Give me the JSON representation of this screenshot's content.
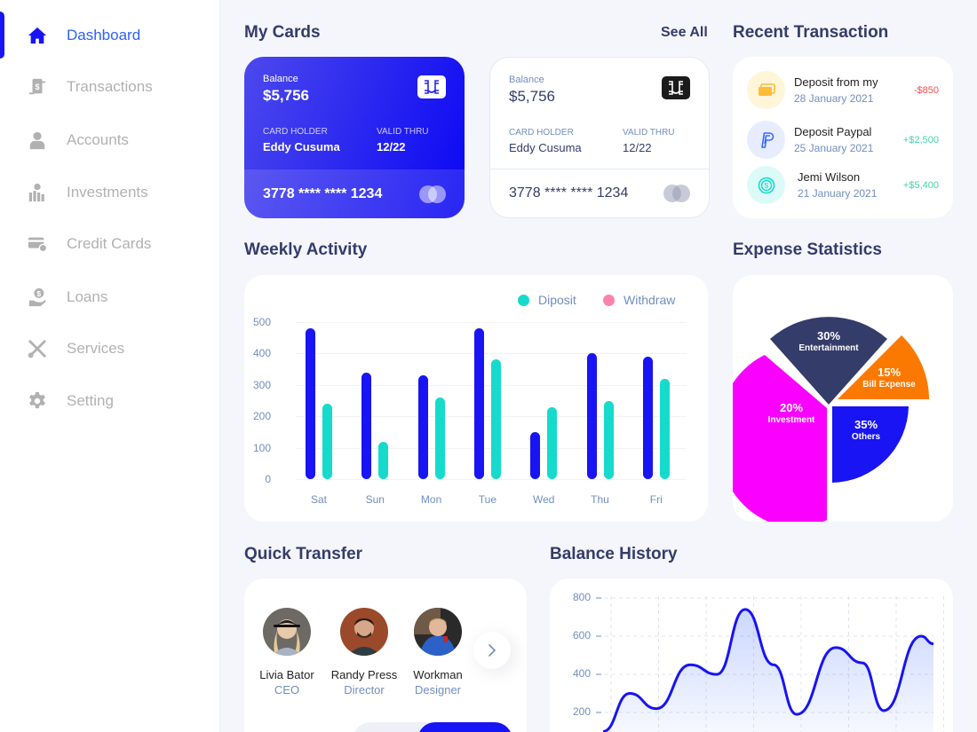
{
  "sidebar": {
    "items": [
      {
        "label": "Dashboard",
        "icon": "home-icon",
        "active": true
      },
      {
        "label": "Transactions",
        "icon": "transfer-icon"
      },
      {
        "label": "Accounts",
        "icon": "user-icon"
      },
      {
        "label": "Investments",
        "icon": "investment-icon"
      },
      {
        "label": "Credit Cards",
        "icon": "credit-card-icon"
      },
      {
        "label": "Loans",
        "icon": "loan-icon"
      },
      {
        "label": "Services",
        "icon": "tools-icon"
      },
      {
        "label": "Setting",
        "icon": "gear-icon"
      }
    ]
  },
  "my_cards": {
    "title": "My Cards",
    "see_all": "See All",
    "cards": [
      {
        "balance_label": "Balance",
        "balance": "$5,756",
        "holder_label": "CARD HOLDER",
        "holder": "Eddy Cusuma",
        "valid_label": "VALID THRU",
        "valid": "12/22",
        "number": "3778 **** **** 1234",
        "style": "dark"
      },
      {
        "balance_label": "Balance",
        "balance": "$5,756",
        "holder_label": "CARD HOLDER",
        "holder": "Eddy Cusuma",
        "valid_label": "VALID THRU",
        "valid": "12/22",
        "number": "3778 **** **** 1234",
        "style": "light"
      }
    ]
  },
  "recent_transaction": {
    "title": "Recent Transaction",
    "items": [
      {
        "name": "Deposit from my",
        "date": "28 January 2021",
        "amount": "-$850",
        "icon": "card-icon",
        "color": "#ff4b4a",
        "bg": "#fff5d9"
      },
      {
        "name": "Deposit Paypal",
        "date": "25 January 2021",
        "amount": "+$2,500",
        "icon": "paypal-icon",
        "color": "#41d4a8",
        "bg": "#e7edff"
      },
      {
        "name": "Jemi Wilson",
        "date": "21 January 2021",
        "amount": "+$5,400",
        "icon": "dollar-coin-icon",
        "color": "#41d4a8",
        "bg": "#dcfaf8"
      }
    ]
  },
  "weekly_activity": {
    "title": "Weekly Activity",
    "legend": [
      {
        "label": "Diposit",
        "color": "#16dbcc"
      },
      {
        "label": "Withdraw",
        "color": "#ff82ac"
      }
    ]
  },
  "expense_statistics": {
    "title": "Expense Statistics"
  },
  "quick_transfer": {
    "title": "Quick Transfer",
    "people": [
      {
        "name": "Livia Bator",
        "role": "CEO"
      },
      {
        "name": "Randy Press",
        "role": "Director"
      },
      {
        "name": "Workman",
        "role": "Designer"
      }
    ]
  },
  "balance_history": {
    "title": "Balance History"
  },
  "chart_data": [
    {
      "type": "bar",
      "title": "Weekly Activity",
      "categories": [
        "Sat",
        "Sun",
        "Mon",
        "Tue",
        "Wed",
        "Thu",
        "Fri"
      ],
      "series": [
        {
          "name": "Withdraw",
          "color": "#1814f3",
          "values": [
            480,
            340,
            330,
            480,
            150,
            400,
            390
          ]
        },
        {
          "name": "Diposit",
          "color": "#16dbcc",
          "values": [
            240,
            120,
            260,
            380,
            230,
            250,
            320
          ]
        }
      ],
      "yticks": [
        0,
        100,
        200,
        300,
        400,
        500
      ],
      "ylim": [
        0,
        500
      ],
      "grid": true,
      "legend_position": "top-right"
    },
    {
      "type": "pie",
      "title": "Expense Statistics",
      "categories": [
        "Entertainment",
        "Bill Expense",
        "Others",
        "Investment"
      ],
      "values": [
        30,
        15,
        35,
        20
      ],
      "colors": [
        "#343c6a",
        "#fc7900",
        "#1814f3",
        "#fa00ff"
      ],
      "labels": [
        "30%",
        "15%",
        "35%",
        "20%"
      ]
    },
    {
      "type": "area",
      "title": "Balance History",
      "x": [
        0,
        1,
        2,
        3,
        4,
        5,
        6,
        7,
        8,
        9,
        10,
        11,
        12,
        13,
        14
      ],
      "values": [
        100,
        300,
        220,
        450,
        400,
        740,
        450,
        190,
        540,
        460,
        210,
        600,
        560,
        560,
        560
      ],
      "yticks": [
        200,
        400,
        600,
        800
      ],
      "ylim": [
        0,
        800
      ],
      "grid": true,
      "color": "#1814f3"
    }
  ]
}
